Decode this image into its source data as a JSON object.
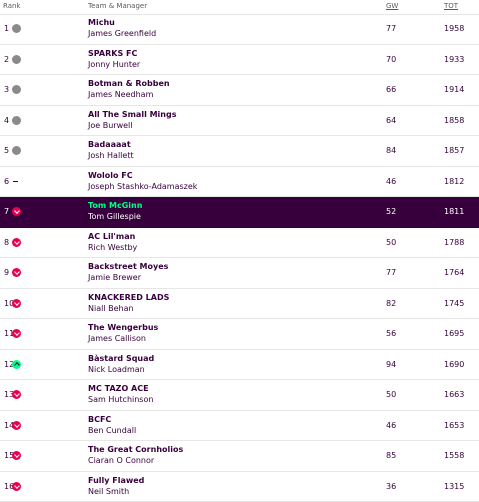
{
  "header": {
    "rank": "Rank",
    "team_manager": "Team & Manager",
    "gw": "GW",
    "tot": "TOT"
  },
  "movement_colors": {
    "same": "#8a8a8a",
    "down": "#e90052",
    "up": "#00ff87"
  },
  "rows": [
    {
      "rank": "1",
      "movement": "same",
      "team": "Michu",
      "manager": "James Greenfield",
      "gw": "77",
      "tot": "1958"
    },
    {
      "rank": "2",
      "movement": "same",
      "team": "SPARKS FC",
      "manager": "Jonny Hunter",
      "gw": "70",
      "tot": "1933"
    },
    {
      "rank": "3",
      "movement": "same",
      "team": "Botman & Robben",
      "manager": "James Needham",
      "gw": "66",
      "tot": "1914"
    },
    {
      "rank": "4",
      "movement": "same",
      "team": "All The Small Mings",
      "manager": "Joe Burwell",
      "gw": "64",
      "tot": "1858"
    },
    {
      "rank": "5",
      "movement": "same",
      "team": "Badaaaat",
      "manager": "Josh Hallett",
      "gw": "84",
      "tot": "1857"
    },
    {
      "rank": "6",
      "movement": "new",
      "team": "Wololo FC",
      "manager": "Joseph Stashko-Adamaszek",
      "gw": "46",
      "tot": "1812"
    },
    {
      "rank": "7",
      "movement": "down",
      "team": "Tom McGinn",
      "manager": "Tom Gillespie",
      "gw": "52",
      "tot": "1811",
      "active": true
    },
    {
      "rank": "8",
      "movement": "down",
      "team": "AC Lil'man",
      "manager": "Rich Westby",
      "gw": "50",
      "tot": "1788"
    },
    {
      "rank": "9",
      "movement": "down",
      "team": "Backstreet Moyes",
      "manager": "Jamie Brewer",
      "gw": "77",
      "tot": "1764"
    },
    {
      "rank": "10",
      "movement": "down",
      "team": "KNACKERED LADS",
      "manager": "Niall Behan",
      "gw": "82",
      "tot": "1745"
    },
    {
      "rank": "11",
      "movement": "down",
      "team": "The Wengerbus",
      "manager": "James Callison",
      "gw": "56",
      "tot": "1695"
    },
    {
      "rank": "12",
      "movement": "up",
      "team": "Bàstard Squad",
      "manager": "Nick Loadman",
      "gw": "94",
      "tot": "1690"
    },
    {
      "rank": "13",
      "movement": "down",
      "team": "MC TAZO ACE",
      "manager": "Sam Hutchinson",
      "gw": "50",
      "tot": "1663"
    },
    {
      "rank": "14",
      "movement": "down",
      "team": "BCFC",
      "manager": "Ben Cundall",
      "gw": "46",
      "tot": "1653"
    },
    {
      "rank": "15",
      "movement": "down",
      "team": "The Great Cornholios",
      "manager": "Ciaran O Connor",
      "gw": "85",
      "tot": "1558"
    },
    {
      "rank": "16",
      "movement": "down",
      "team": "Fully Flawed",
      "manager": "Neil Smith",
      "gw": "36",
      "tot": "1315"
    }
  ]
}
